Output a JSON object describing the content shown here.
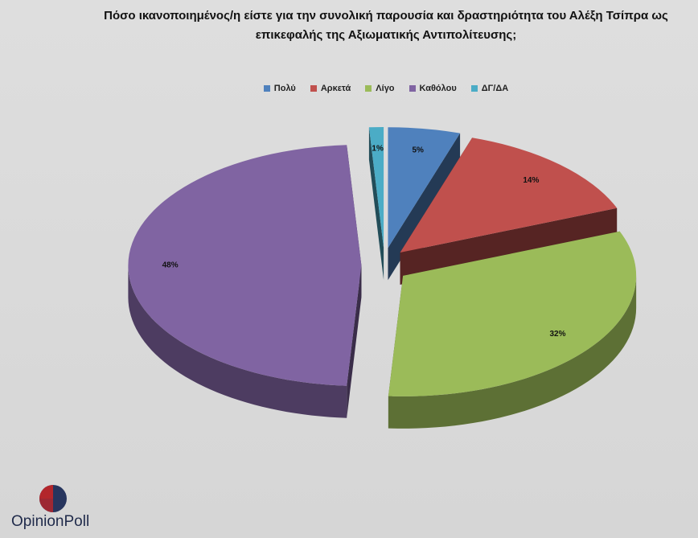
{
  "chart_data": {
    "type": "pie3d",
    "title": "Πόσο ικανοποιημένος/η είστε για την συνολική παρουσία και δραστηριότητα του Αλέξη Τσίπρα ως επικεφαλής της Αξιωματικής Αντιπολίτευσης;",
    "categories": [
      "Πολύ",
      "Αρκετά",
      "Λίγο",
      "Καθόλου",
      "ΔΓ/ΔΑ"
    ],
    "values": [
      5,
      14,
      32,
      48,
      1
    ],
    "value_labels": [
      "5%",
      "14%",
      "32%",
      "48%",
      "1%"
    ],
    "colors": [
      "#4f81bd",
      "#c0504d",
      "#9bbb59",
      "#8064a2",
      "#4bacc6"
    ],
    "legend": "top"
  },
  "logo": "OpinionPoll"
}
